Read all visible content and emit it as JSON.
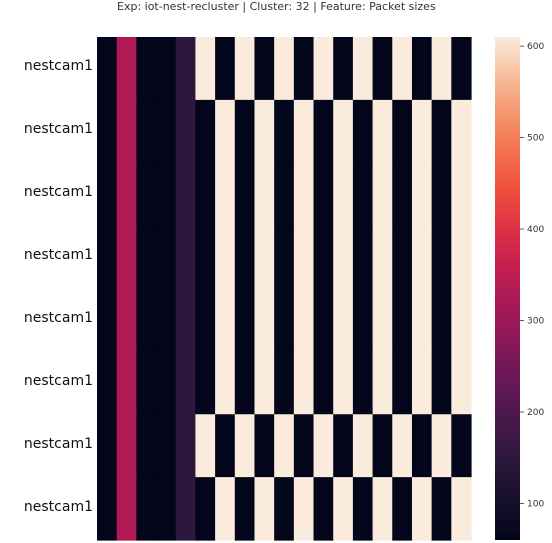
{
  "title": "Exp: iot-nest-recluster | Cluster: 32 | Feature: Packet sizes",
  "chart_data": {
    "type": "heatmap",
    "title": "Exp: iot-nest-recluster | Cluster: 32 | Feature: Packet sizes",
    "row_labels": [
      "nestcam1",
      "nestcam1",
      "nestcam1",
      "nestcam1",
      "nestcam1",
      "nestcam1",
      "nestcam1",
      "nestcam1"
    ],
    "columns": 19,
    "values": [
      [
        60,
        330,
        60,
        60,
        150,
        610,
        60,
        610,
        60,
        610,
        60,
        610,
        60,
        610,
        60,
        610,
        60,
        610,
        60
      ],
      [
        60,
        330,
        60,
        60,
        150,
        60,
        610,
        60,
        610,
        60,
        610,
        60,
        610,
        60,
        610,
        60,
        610,
        60,
        610
      ],
      [
        60,
        330,
        60,
        60,
        150,
        60,
        610,
        60,
        610,
        60,
        610,
        60,
        610,
        60,
        610,
        60,
        610,
        60,
        610
      ],
      [
        60,
        330,
        60,
        60,
        150,
        60,
        610,
        60,
        610,
        60,
        610,
        60,
        610,
        60,
        610,
        60,
        610,
        60,
        610
      ],
      [
        60,
        330,
        60,
        60,
        150,
        60,
        610,
        60,
        610,
        60,
        610,
        60,
        610,
        60,
        610,
        60,
        610,
        60,
        610
      ],
      [
        60,
        330,
        60,
        60,
        150,
        60,
        610,
        60,
        610,
        60,
        610,
        60,
        610,
        60,
        610,
        60,
        610,
        60,
        610
      ],
      [
        60,
        330,
        60,
        60,
        150,
        610,
        60,
        610,
        60,
        610,
        60,
        610,
        60,
        610,
        60,
        610,
        60,
        610,
        60
      ],
      [
        60,
        330,
        60,
        60,
        150,
        60,
        610,
        60,
        610,
        60,
        610,
        60,
        610,
        60,
        610,
        60,
        610,
        60,
        610
      ]
    ],
    "colorbar": {
      "min": 60,
      "max": 610,
      "ticks": [
        100,
        200,
        300,
        400,
        500,
        600
      ],
      "colormap": "rocket"
    }
  }
}
